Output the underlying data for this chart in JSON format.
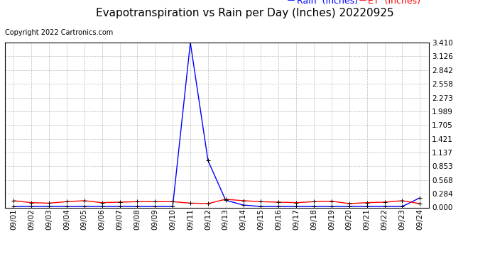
{
  "title": "Evapotranspiration vs Rain per Day (Inches) 20220925",
  "copyright": "Copyright 2022 Cartronics.com",
  "legend_rain": "Rain  (Inches)",
  "legend_et": "ET  (Inches)",
  "x_labels": [
    "09/01",
    "09/02",
    "09/03",
    "09/04",
    "09/05",
    "09/06",
    "09/07",
    "09/08",
    "09/09",
    "09/10",
    "09/11",
    "09/12",
    "09/13",
    "09/14",
    "09/15",
    "09/16",
    "09/17",
    "09/18",
    "09/19",
    "09/20",
    "09/21",
    "09/22",
    "09/23",
    "09/24"
  ],
  "rain_data": [
    0.02,
    0.02,
    0.02,
    0.02,
    0.02,
    0.02,
    0.02,
    0.02,
    0.02,
    0.02,
    3.41,
    0.97,
    0.15,
    0.05,
    0.02,
    0.02,
    0.02,
    0.02,
    0.02,
    0.02,
    0.02,
    0.02,
    0.02,
    0.2
  ],
  "et_data": [
    0.14,
    0.1,
    0.09,
    0.12,
    0.14,
    0.1,
    0.11,
    0.12,
    0.12,
    0.12,
    0.09,
    0.08,
    0.17,
    0.14,
    0.12,
    0.11,
    0.1,
    0.12,
    0.13,
    0.08,
    0.1,
    0.11,
    0.14,
    0.08
  ],
  "rain_color": "#0000ff",
  "et_color": "#ff0000",
  "ylim": [
    0.0,
    3.41
  ],
  "yticks": [
    0.0,
    0.284,
    0.568,
    0.853,
    1.137,
    1.421,
    1.705,
    1.989,
    2.273,
    2.558,
    2.842,
    3.126,
    3.41
  ],
  "background_color": "#ffffff",
  "grid_color": "#bbbbbb",
  "title_fontsize": 11,
  "copyright_fontsize": 7,
  "legend_fontsize": 9,
  "tick_fontsize": 7.5
}
